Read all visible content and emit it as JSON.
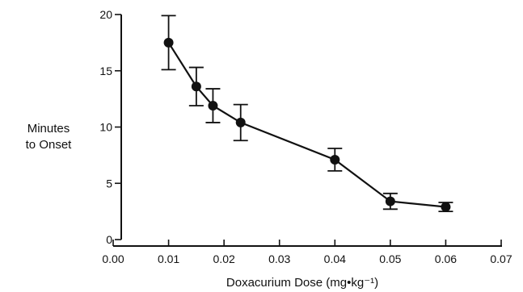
{
  "chart_data": {
    "type": "line",
    "title": "",
    "xlabel": "Doxacurium Dose (mg•kg⁻¹)",
    "ylabel_lines": [
      "Minutes",
      "to Onset"
    ],
    "xlim": [
      0.0,
      0.07
    ],
    "ylim": [
      0,
      20
    ],
    "x_ticks": [
      0.0,
      0.01,
      0.02,
      0.03,
      0.04,
      0.05,
      0.06,
      0.07
    ],
    "x_tick_labels": [
      "0.00",
      "0.01",
      "0.02",
      "0.03",
      "0.04",
      "0.05",
      "0.06",
      "0.07"
    ],
    "y_ticks": [
      0,
      5,
      10,
      15,
      20
    ],
    "y_tick_labels": [
      "0",
      "5",
      "10",
      "15",
      "20"
    ],
    "grid": false,
    "series": [
      {
        "x": [
          0.01,
          0.015,
          0.018,
          0.023,
          0.04,
          0.05,
          0.06
        ],
        "y": [
          17.5,
          13.6,
          11.9,
          10.4,
          7.1,
          3.4,
          2.9
        ],
        "error": [
          2.4,
          1.7,
          1.5,
          1.6,
          1.0,
          0.7,
          0.4
        ]
      }
    ],
    "colors": {
      "ink": "#111111",
      "background": "#ffffff"
    }
  }
}
